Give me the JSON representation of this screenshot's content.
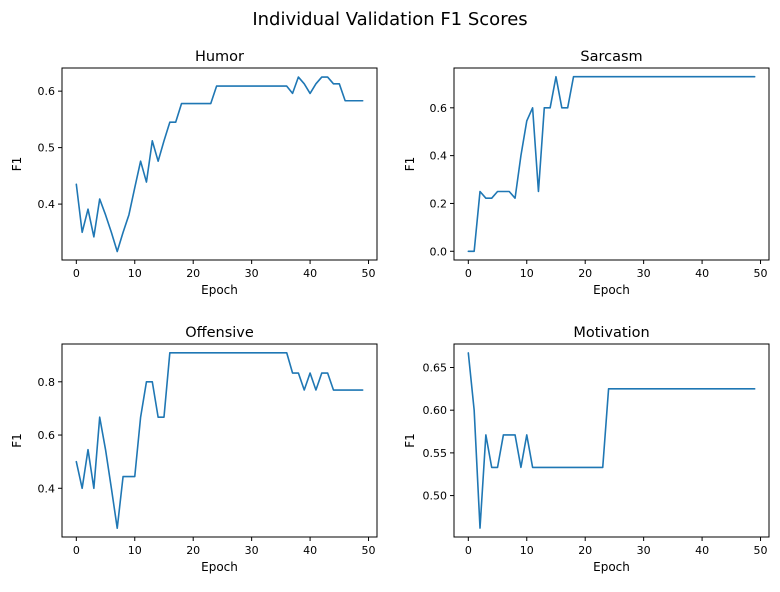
{
  "figure": {
    "title": "Individual Validation F1 Scores"
  },
  "colors": {
    "series": "#1f77b4"
  },
  "chart_data": [
    {
      "type": "line",
      "title": "Humor",
      "xlabel": "Epoch",
      "ylabel": "F1",
      "xlim": [
        -2.45,
        51.45
      ],
      "ylim": [
        0.301,
        0.641
      ],
      "xticks": [
        0,
        10,
        20,
        30,
        40,
        50
      ],
      "yticks": [
        0.4,
        0.5,
        0.6
      ],
      "ytick_labels": [
        "0.4",
        "0.5",
        "0.6"
      ],
      "grid": false,
      "x": [
        0,
        1,
        2,
        3,
        4,
        5,
        6,
        7,
        8,
        9,
        10,
        11,
        12,
        13,
        14,
        15,
        16,
        17,
        18,
        19,
        20,
        21,
        22,
        23,
        24,
        25,
        26,
        27,
        28,
        29,
        30,
        31,
        32,
        33,
        34,
        35,
        36,
        37,
        38,
        39,
        40,
        41,
        42,
        43,
        44,
        45,
        46,
        47,
        48,
        49
      ],
      "series": [
        {
          "values": [
            0.435,
            0.35,
            0.391,
            0.342,
            0.409,
            0.381,
            0.35,
            0.316,
            0.35,
            0.381,
            0.429,
            0.476,
            0.439,
            0.512,
            0.476,
            0.512,
            0.545,
            0.545,
            0.578,
            0.578,
            0.578,
            0.578,
            0.578,
            0.578,
            0.609,
            0.609,
            0.609,
            0.609,
            0.609,
            0.609,
            0.609,
            0.609,
            0.609,
            0.609,
            0.609,
            0.609,
            0.609,
            0.596,
            0.625,
            0.613,
            0.596,
            0.613,
            0.625,
            0.625,
            0.613,
            0.613,
            0.583,
            0.583,
            0.583,
            0.583
          ]
        }
      ]
    },
    {
      "type": "line",
      "title": "Sarcasm",
      "xlabel": "Epoch",
      "ylabel": "F1",
      "xlim": [
        -2.45,
        51.45
      ],
      "ylim": [
        -0.0365,
        0.7665
      ],
      "xticks": [
        0,
        10,
        20,
        30,
        40,
        50
      ],
      "yticks": [
        0.0,
        0.2,
        0.4,
        0.6
      ],
      "ytick_labels": [
        "0.0",
        "0.2",
        "0.4",
        "0.6"
      ],
      "grid": false,
      "x": [
        0,
        1,
        2,
        3,
        4,
        5,
        6,
        7,
        8,
        9,
        10,
        11,
        12,
        13,
        14,
        15,
        16,
        17,
        18,
        19,
        20,
        21,
        22,
        23,
        24,
        25,
        26,
        27,
        28,
        29,
        30,
        31,
        32,
        33,
        34,
        35,
        36,
        37,
        38,
        39,
        40,
        41,
        42,
        43,
        44,
        45,
        46,
        47,
        48,
        49
      ],
      "series": [
        {
          "values": [
            0.0,
            0.0,
            0.25,
            0.222,
            0.222,
            0.25,
            0.25,
            0.25,
            0.222,
            0.4,
            0.545,
            0.6,
            0.25,
            0.6,
            0.6,
            0.73,
            0.6,
            0.6,
            0.73,
            0.73,
            0.73,
            0.73,
            0.73,
            0.73,
            0.73,
            0.73,
            0.73,
            0.73,
            0.73,
            0.73,
            0.73,
            0.73,
            0.73,
            0.73,
            0.73,
            0.73,
            0.73,
            0.73,
            0.73,
            0.73,
            0.73,
            0.73,
            0.73,
            0.73,
            0.73,
            0.73,
            0.73,
            0.73,
            0.73,
            0.73
          ]
        }
      ]
    },
    {
      "type": "line",
      "title": "Offensive",
      "xlabel": "Epoch",
      "ylabel": "F1",
      "xlim": [
        -2.45,
        51.45
      ],
      "ylim": [
        0.217,
        0.942
      ],
      "xticks": [
        0,
        10,
        20,
        30,
        40,
        50
      ],
      "yticks": [
        0.4,
        0.6,
        0.8
      ],
      "ytick_labels": [
        "0.4",
        "0.6",
        "0.8"
      ],
      "grid": false,
      "x": [
        0,
        1,
        2,
        3,
        4,
        5,
        6,
        7,
        8,
        9,
        10,
        11,
        12,
        13,
        14,
        15,
        16,
        17,
        18,
        19,
        20,
        21,
        22,
        23,
        24,
        25,
        26,
        27,
        28,
        29,
        30,
        31,
        32,
        33,
        34,
        35,
        36,
        37,
        38,
        39,
        40,
        41,
        42,
        43,
        44,
        45,
        46,
        47,
        48,
        49
      ],
      "series": [
        {
          "values": [
            0.5,
            0.4,
            0.545,
            0.4,
            0.667,
            0.545,
            0.4,
            0.25,
            0.444,
            0.444,
            0.444,
            0.667,
            0.8,
            0.8,
            0.667,
            0.667,
            0.909,
            0.909,
            0.909,
            0.909,
            0.909,
            0.909,
            0.909,
            0.909,
            0.909,
            0.909,
            0.909,
            0.909,
            0.909,
            0.909,
            0.909,
            0.909,
            0.909,
            0.909,
            0.909,
            0.909,
            0.909,
            0.833,
            0.833,
            0.769,
            0.833,
            0.769,
            0.833,
            0.833,
            0.769,
            0.769,
            0.769,
            0.769,
            0.769,
            0.769
          ]
        }
      ]
    },
    {
      "type": "line",
      "title": "Motivation",
      "xlabel": "Epoch",
      "ylabel": "F1",
      "xlim": [
        -2.45,
        51.45
      ],
      "ylim": [
        0.4515,
        0.6775
      ],
      "xticks": [
        0,
        10,
        20,
        30,
        40,
        50
      ],
      "yticks": [
        0.5,
        0.55,
        0.6,
        0.65
      ],
      "ytick_labels": [
        "0.50",
        "0.55",
        "0.60",
        "0.65"
      ],
      "grid": false,
      "x": [
        0,
        1,
        2,
        3,
        4,
        5,
        6,
        7,
        8,
        9,
        10,
        11,
        12,
        13,
        14,
        15,
        16,
        17,
        18,
        19,
        20,
        21,
        22,
        23,
        24,
        25,
        26,
        27,
        28,
        29,
        30,
        31,
        32,
        33,
        34,
        35,
        36,
        37,
        38,
        39,
        40,
        41,
        42,
        43,
        44,
        45,
        46,
        47,
        48,
        49
      ],
      "series": [
        {
          "values": [
            0.667,
            0.6,
            0.462,
            0.571,
            0.533,
            0.533,
            0.571,
            0.571,
            0.571,
            0.533,
            0.571,
            0.533,
            0.533,
            0.533,
            0.533,
            0.533,
            0.533,
            0.533,
            0.533,
            0.533,
            0.533,
            0.533,
            0.533,
            0.533,
            0.625,
            0.625,
            0.625,
            0.625,
            0.625,
            0.625,
            0.625,
            0.625,
            0.625,
            0.625,
            0.625,
            0.625,
            0.625,
            0.625,
            0.625,
            0.625,
            0.625,
            0.625,
            0.625,
            0.625,
            0.625,
            0.625,
            0.625,
            0.625,
            0.625,
            0.625
          ]
        }
      ]
    }
  ]
}
